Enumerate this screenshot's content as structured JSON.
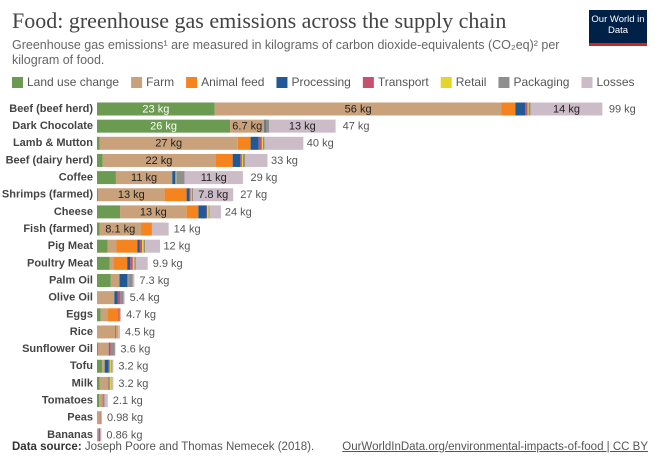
{
  "chart_data": {
    "type": "bar",
    "orientation": "horizontal",
    "stacked": true,
    "title": "Food: greenhouse gas emissions across the supply chain",
    "subtitle": "Greenhouse gas emissions¹ are measured in kilograms of carbon dioxide-equivalents (CO₂eq)² per kilogram of food.",
    "logo": "Our World in Data",
    "source_label": "Data source:",
    "source": "Joseph Poore and Thomas Nemecek (2018).",
    "link": "OurWorldInData.org/environmental-impacts-of-food | CC BY",
    "categories": [
      "Beef (beef herd)",
      "Dark Chocolate",
      "Lamb & Mutton",
      "Beef (dairy herd)",
      "Coffee",
      "Shrimps (farmed)",
      "Cheese",
      "Fish (farmed)",
      "Pig Meat",
      "Poultry Meat",
      "Palm Oil",
      "Olive Oil",
      "Eggs",
      "Rice",
      "Sunflower Oil",
      "Tofu",
      "Milk",
      "Tomatoes",
      "Peas",
      "Bananas"
    ],
    "series": [
      {
        "name": "Land use change",
        "color": "#6b9a51",
        "values": [
          23,
          26,
          0.5,
          1.1,
          3.7,
          0.2,
          4.5,
          0.5,
          2.1,
          2.5,
          2.7,
          0,
          0.7,
          0,
          0.2,
          1.0,
          0.5,
          0.4,
          0,
          0
        ],
        "value_labels": [
          "23 kg",
          "26 kg",
          null,
          null,
          null,
          null,
          null,
          null,
          null,
          null,
          null,
          null,
          null,
          null,
          null,
          null,
          null,
          null,
          null,
          null
        ]
      },
      {
        "name": "Farm",
        "color": "#c9a27b",
        "values": [
          56,
          6.7,
          27,
          22,
          11,
          13,
          13,
          8.1,
          1.7,
          0.7,
          1.7,
          3.4,
          1.3,
          3.6,
          2.1,
          0.5,
          1.5,
          0.7,
          0.7,
          0.27
        ],
        "value_labels": [
          "56 kg",
          "6.7 kg",
          "27 kg",
          "22 kg",
          "11 kg",
          "13 kg",
          "13 kg",
          "8.1 kg",
          null,
          null,
          null,
          null,
          null,
          null,
          null,
          null,
          null,
          null,
          null,
          null
        ]
      },
      {
        "name": "Animal feed",
        "color": "#f5841f",
        "values": [
          2.7,
          0,
          2.5,
          3.4,
          0,
          4.3,
          2.3,
          2.0,
          4.1,
          2.7,
          0,
          0,
          2.2,
          0,
          0,
          0,
          0.2,
          0,
          0,
          0
        ]
      },
      {
        "name": "Processing",
        "color": "#1f5a96",
        "values": [
          1.9,
          0.2,
          1.6,
          1.5,
          0.6,
          0.6,
          1.6,
          0,
          0.4,
          0.6,
          1.5,
          0.6,
          0,
          0.1,
          0.2,
          0.8,
          0.1,
          0,
          0,
          0.07
        ]
      },
      {
        "name": "Transport",
        "color": "#c7506f",
        "values": [
          0.5,
          0.1,
          0.6,
          0.3,
          0.1,
          0.2,
          0.1,
          0.1,
          0.5,
          0.5,
          0.2,
          0.5,
          0.1,
          0.1,
          0.2,
          0.2,
          0.2,
          0.2,
          0.1,
          0.3
        ]
      },
      {
        "name": "Retail",
        "color": "#e5d52b",
        "values": [
          0.2,
          0,
          0.2,
          0.2,
          0.1,
          0.2,
          0.3,
          0,
          0.3,
          0.3,
          0,
          0,
          0,
          0.1,
          0,
          0.3,
          0.3,
          0,
          0,
          0.02
        ]
      },
      {
        "name": "Packaging",
        "color": "#8f8f8f",
        "values": [
          0.4,
          0.6,
          0.3,
          0.4,
          1.6,
          0.3,
          0.2,
          0.1,
          0.3,
          0.3,
          0.9,
          0.7,
          0.2,
          0.1,
          0.8,
          0.2,
          0.1,
          0.2,
          0.04,
          0.07
        ]
      },
      {
        "name": "Losses",
        "color": "#ccbcc8",
        "values": [
          14,
          13,
          7.6,
          4.4,
          11.4,
          7.8,
          2.2,
          3.2,
          2.9,
          2.3,
          0.3,
          0.2,
          0.2,
          0.5,
          0.1,
          0.2,
          0.3,
          0.6,
          0.14,
          0.13
        ],
        "value_labels": [
          "14 kg",
          "13 kg",
          null,
          null,
          "11 kg",
          "7.8 kg",
          null,
          null,
          null,
          null,
          null,
          null,
          null,
          null,
          null,
          null,
          null,
          null,
          null,
          null
        ]
      }
    ],
    "totals": [
      99,
      47,
      40,
      33,
      29,
      27,
      24,
      14,
      12,
      9.9,
      7.3,
      5.4,
      4.7,
      4.5,
      3.6,
      3.2,
      3.2,
      2.1,
      0.98,
      0.86
    ],
    "total_labels": [
      "99 kg",
      "47 kg",
      "40 kg",
      "33 kg",
      "29 kg",
      "27 kg",
      "24 kg",
      "14 kg",
      "12 kg",
      "9.9 kg",
      "7.3 kg",
      "5.4 kg",
      "4.7 kg",
      "4.5 kg",
      "3.6 kg",
      "3.2 kg",
      "3.2 kg",
      "2.1 kg",
      "0.98 kg",
      "0.86 kg"
    ],
    "legend": "top"
  }
}
